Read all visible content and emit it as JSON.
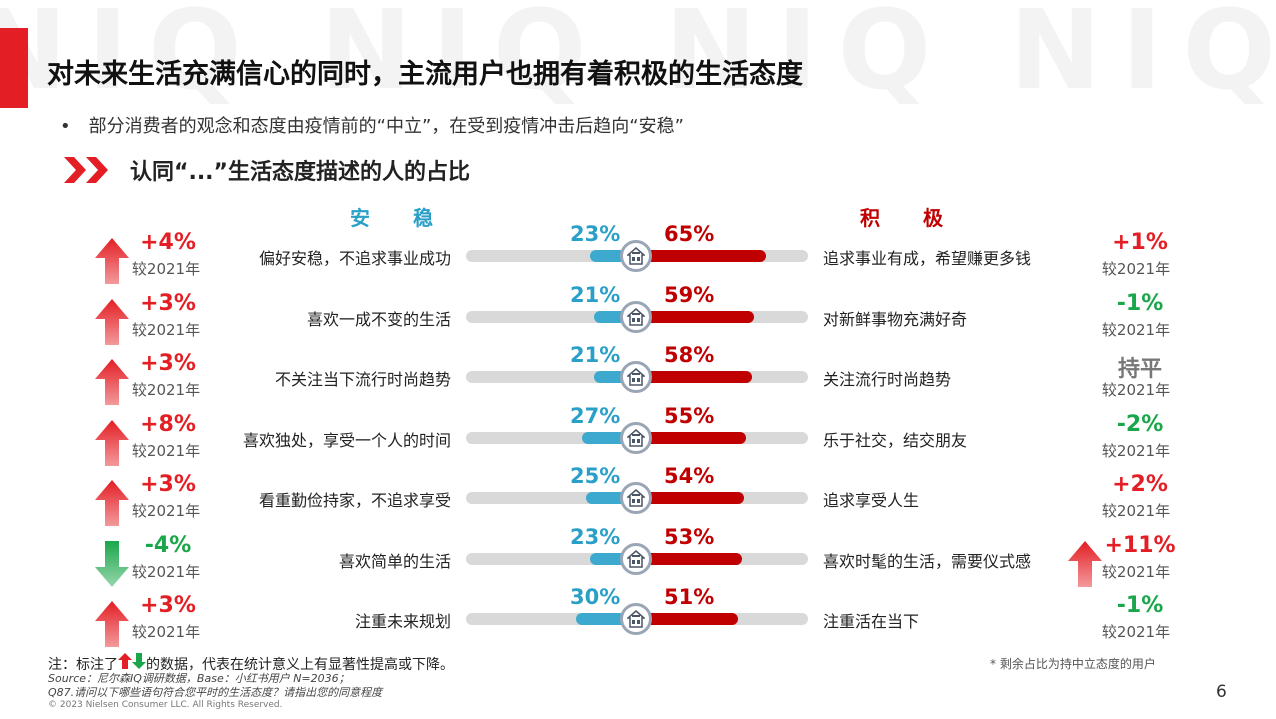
{
  "watermark": "NIQ NIQ NIQ NIQ",
  "title": "对未来生活充满信心的同时，主流用户也拥有着积极的生活态度",
  "bullet": "部分消费者的观念和态度由疫情前的“中立”，在受到疫情冲击后趋向“安稳”",
  "subtitle": "认同“...”生活态度描述的人的占比",
  "header_left": "安 稳",
  "header_right": "积 极",
  "compare_label": "较2021年",
  "colors": {
    "up": "#e31e24",
    "down": "#1aa64a",
    "flat": "#777777",
    "left_bar": "#3da9cf",
    "right_bar": "#c00000"
  },
  "chart_data": {
    "type": "bar",
    "categories": [
      "偏好安稳，不追求事业成功 / 追求事业有成，希望赚更多钱",
      "喜欢一成不变的生活 / 对新鲜事物充满好奇",
      "不关注当下流行时尚趋势 / 关注流行时尚趋势",
      "喜欢独处，享受一个人的时间 / 乐于社交，结交朋友",
      "看重勤俭持家，不追求享受 / 追求享受人生",
      "喜欢简单的生活 / 喜欢时髦的生活，需要仪式感",
      "注重未来规划 / 注重活在当下"
    ],
    "series": [
      {
        "name": "安 稳",
        "values": [
          23,
          21,
          21,
          27,
          25,
          23,
          30
        ]
      },
      {
        "name": "积 极",
        "values": [
          65,
          59,
          58,
          55,
          54,
          53,
          51
        ]
      }
    ],
    "unit": "%",
    "xlim": [
      0,
      100
    ]
  },
  "rows": [
    {
      "left_label": "偏好安稳，不追求事业成功",
      "right_label": "追求事业有成，希望赚更多钱",
      "left_pct": "23%",
      "right_pct": "65%",
      "left_val": 23,
      "right_val": 65,
      "left_change": "+4%",
      "left_dir": "up",
      "right_change": "+1%",
      "right_dir": "none"
    },
    {
      "left_label": "喜欢一成不变的生活",
      "right_label": "对新鲜事物充满好奇",
      "left_pct": "21%",
      "right_pct": "59%",
      "left_val": 21,
      "right_val": 59,
      "left_change": "+3%",
      "left_dir": "up",
      "right_change": "-1%",
      "right_dir": "none"
    },
    {
      "left_label": "不关注当下流行时尚趋势",
      "right_label": "关注流行时尚趋势",
      "left_pct": "21%",
      "right_pct": "58%",
      "left_val": 21,
      "right_val": 58,
      "left_change": "+3%",
      "left_dir": "up",
      "right_change": "持平",
      "right_dir": "flat"
    },
    {
      "left_label": "喜欢独处，享受一个人的时间",
      "right_label": "乐于社交，结交朋友",
      "left_pct": "27%",
      "right_pct": "55%",
      "left_val": 27,
      "right_val": 55,
      "left_change": "+8%",
      "left_dir": "up",
      "right_change": "-2%",
      "right_dir": "none"
    },
    {
      "left_label": "看重勤俭持家，不追求享受",
      "right_label": "追求享受人生",
      "left_pct": "25%",
      "right_pct": "54%",
      "left_val": 25,
      "right_val": 54,
      "left_change": "+3%",
      "left_dir": "up",
      "right_change": "+2%",
      "right_dir": "none"
    },
    {
      "left_label": "喜欢简单的生活",
      "right_label": "喜欢时髦的生活，需要仪式感",
      "left_pct": "23%",
      "right_pct": "53%",
      "left_val": 23,
      "right_val": 53,
      "left_change": "-4%",
      "left_dir": "down",
      "right_change": "+11%",
      "right_dir": "up"
    },
    {
      "left_label": "注重未来规划",
      "right_label": "注重活在当下",
      "left_pct": "30%",
      "right_pct": "51%",
      "left_val": 30,
      "right_val": 51,
      "left_change": "+3%",
      "left_dir": "up",
      "right_change": "-1%",
      "right_dir": "none"
    }
  ],
  "note_prefix": "注：标注了",
  "note_suffix": "的数据，代表在统计意义上有显著性提高或下降。",
  "source1": "Source：尼尔森IQ调研数据，Base：小红书用户 N=2036；",
  "source2": "Q87.请问以下哪些语句符合您平时的生活态度？请指出您的同意程度",
  "copyright": "© 2023 Nielsen Consumer LLC. All Rights Reserved.",
  "rest_note": "* 剩余占比为持中立态度的用户",
  "page_number": "6"
}
